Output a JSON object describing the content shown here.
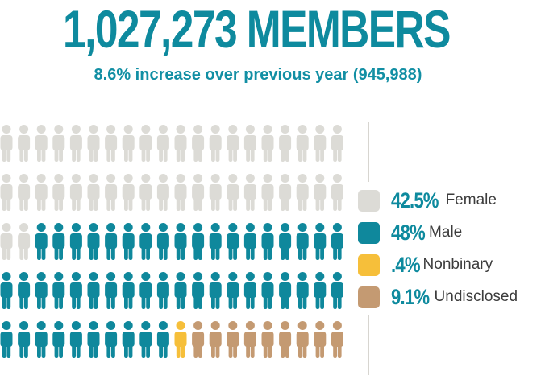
{
  "header": {
    "title": "1,027,273 MEMBERS",
    "subtitle": "8.6% increase over previous year (945,988)"
  },
  "chart_data": {
    "type": "pictogram",
    "total_members": 1027273,
    "previous_year_members": 945988,
    "increase_percent": 8.6,
    "grid": {
      "rows": 5,
      "icons_per_row": 20
    },
    "series": [
      {
        "name": "Female",
        "percent_label": "42.5%",
        "value": 42.5,
        "icons": 42,
        "color": "#dcdbd6"
      },
      {
        "name": "Male",
        "percent_label": "48%",
        "value": 48,
        "icons": 48,
        "color": "#0f889c"
      },
      {
        "name": "Nonbinary",
        "percent_label": ".4%",
        "value": 0.4,
        "icons": 1,
        "color": "#f6bf3a"
      },
      {
        "name": "Undisclosed",
        "percent_label": "9.1%",
        "value": 9.1,
        "icons": 9,
        "color": "#c49a72"
      }
    ]
  }
}
